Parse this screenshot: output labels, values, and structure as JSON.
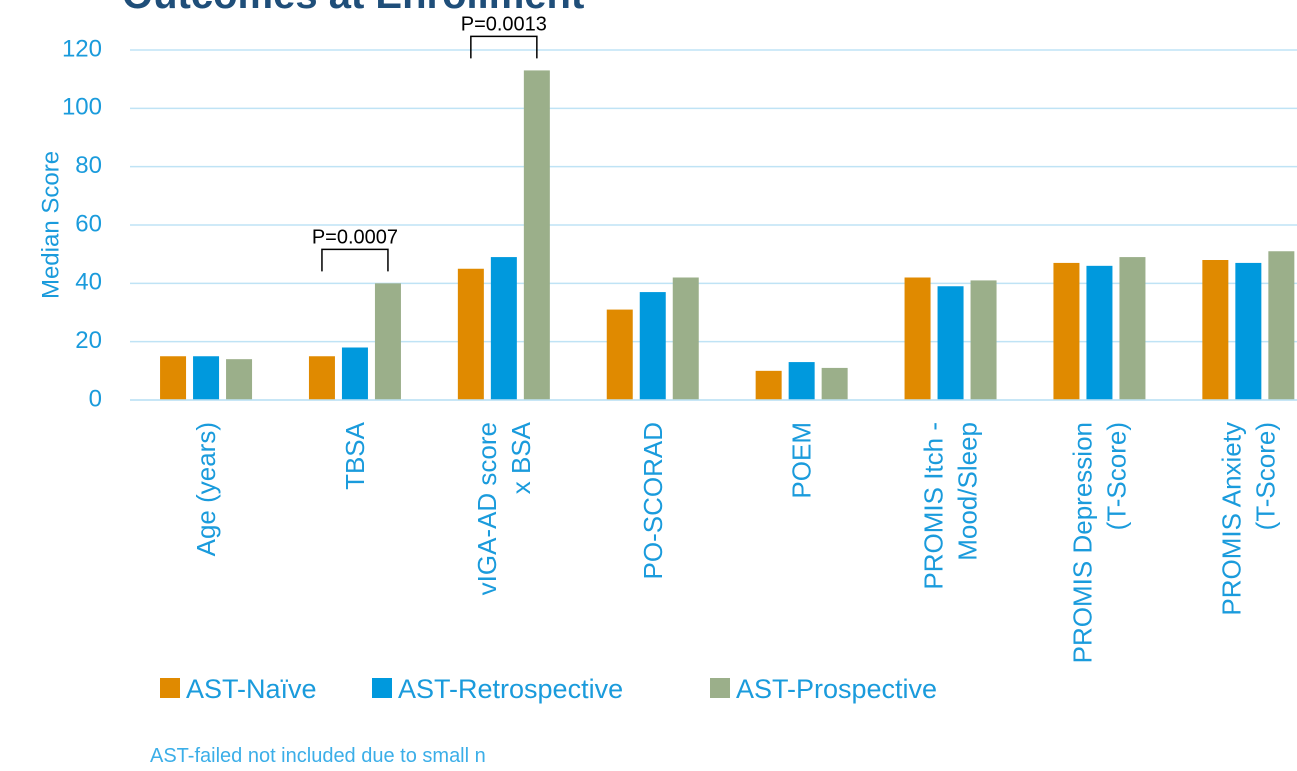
{
  "chart_data": {
    "type": "bar",
    "title": "Outcomes at Enrollment",
    "y_label": "Median Score",
    "categories": [
      "Age (years)",
      "TBSA",
      "vIGA-AD score\nx BSA",
      "PO-SCORAD",
      "POEM",
      "PROMIS Itch -\nMood/Sleep",
      "PROMIS Depression\n(T-Score)",
      "PROMIS Anxiety\n(T-Score)"
    ],
    "series": [
      {
        "name": "AST-Naïve",
        "color": "#E08A00",
        "values": [
          15,
          15,
          45,
          31,
          10,
          42,
          47,
          48
        ]
      },
      {
        "name": "AST-Retrospective",
        "color": "#0099DD",
        "values": [
          15,
          18,
          49,
          37,
          13,
          39,
          46,
          47
        ]
      },
      {
        "name": "AST-Prospective",
        "color": "#9BAF8A",
        "values": [
          14,
          40,
          113,
          42,
          11,
          41,
          49,
          51
        ]
      }
    ],
    "ylim": [
      0,
      120
    ],
    "yticks": [
      0,
      20,
      40,
      60,
      80,
      100,
      120
    ],
    "grid": true,
    "annotations": [
      "P=0.0007",
      "P=0.0013"
    ],
    "footnote": "AST-failed not included due to small n"
  }
}
